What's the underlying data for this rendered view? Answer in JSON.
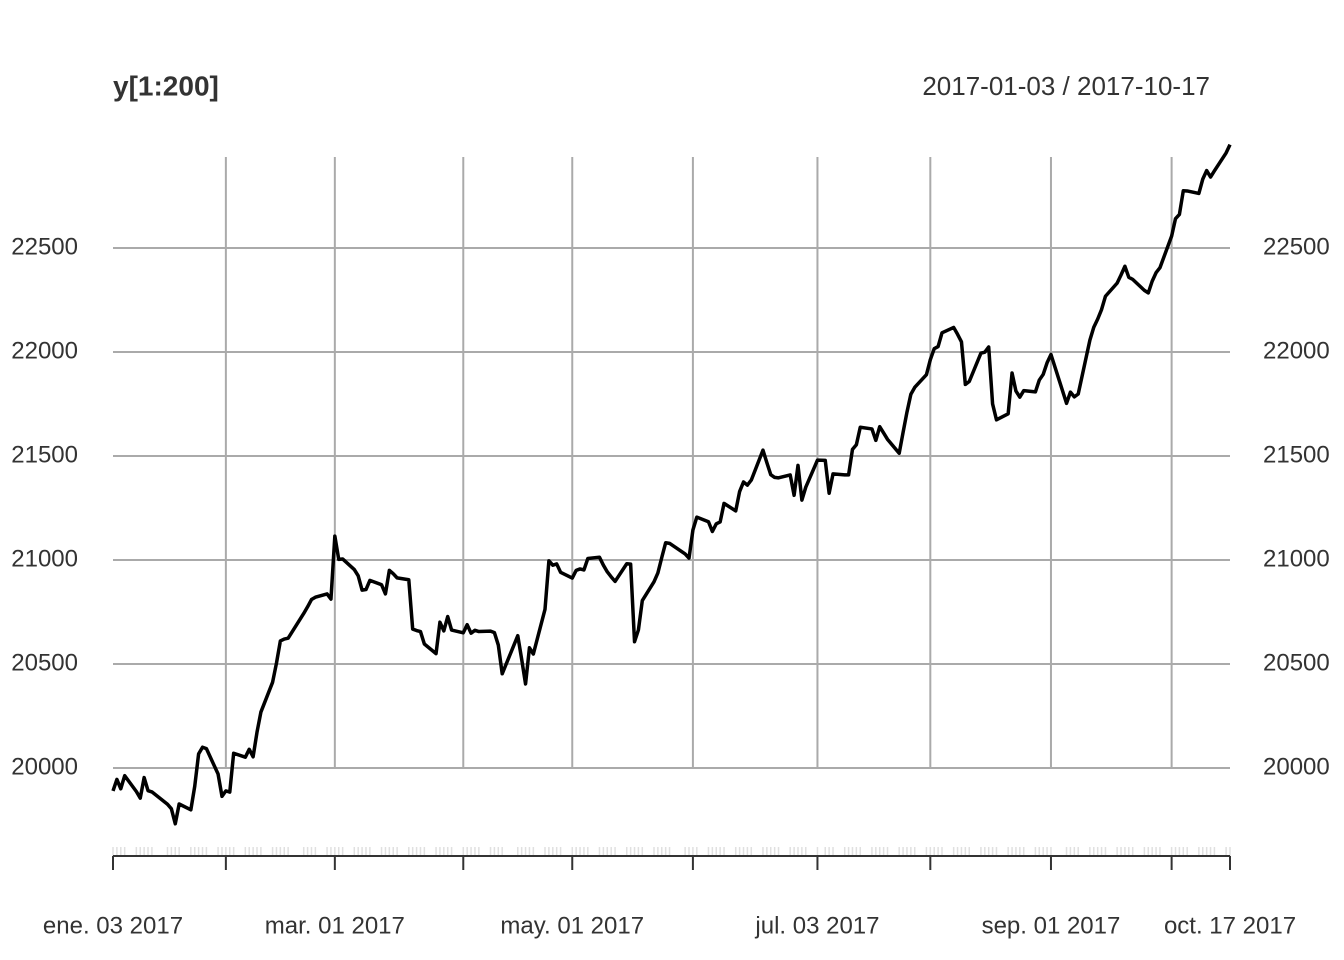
{
  "chart_data": {
    "type": "line",
    "title": "y[1:200]",
    "subtitle": "2017-01-03 / 2017-10-17",
    "color": "#000000",
    "grid": true,
    "xlim": [
      "2017-01-03",
      "2017-10-17"
    ],
    "xticks": [
      {
        "value": "2017-01-03",
        "label": "ene. 03 2017"
      },
      {
        "value": "2017-02-01",
        "label": null
      },
      {
        "value": "2017-03-01",
        "label": "mar. 01 2017"
      },
      {
        "value": "2017-04-03",
        "label": null
      },
      {
        "value": "2017-05-01",
        "label": "may. 01 2017"
      },
      {
        "value": "2017-06-01",
        "label": null
      },
      {
        "value": "2017-07-03",
        "label": "jul. 03 2017"
      },
      {
        "value": "2017-08-01",
        "label": null
      },
      {
        "value": "2017-09-01",
        "label": "sep. 01 2017"
      },
      {
        "value": "2017-10-02",
        "label": null
      },
      {
        "value": "2017-10-17",
        "label": "oct. 17 2017"
      }
    ],
    "ylim": [
      19577,
      22995
    ],
    "yticks": [
      20000,
      20500,
      21000,
      21500,
      22000,
      22500
    ],
    "x": [
      "2017-01-03",
      "2017-01-04",
      "2017-01-05",
      "2017-01-06",
      "2017-01-09",
      "2017-01-10",
      "2017-01-11",
      "2017-01-12",
      "2017-01-13",
      "2017-01-17",
      "2017-01-18",
      "2017-01-19",
      "2017-01-20",
      "2017-01-23",
      "2017-01-24",
      "2017-01-25",
      "2017-01-26",
      "2017-01-27",
      "2017-01-30",
      "2017-01-31",
      "2017-02-01",
      "2017-02-02",
      "2017-02-03",
      "2017-02-06",
      "2017-02-07",
      "2017-02-08",
      "2017-02-09",
      "2017-02-10",
      "2017-02-13",
      "2017-02-14",
      "2017-02-15",
      "2017-02-16",
      "2017-02-17",
      "2017-02-21",
      "2017-02-22",
      "2017-02-23",
      "2017-02-24",
      "2017-02-27",
      "2017-02-28",
      "2017-03-01",
      "2017-03-02",
      "2017-03-03",
      "2017-03-06",
      "2017-03-07",
      "2017-03-08",
      "2017-03-09",
      "2017-03-10",
      "2017-03-13",
      "2017-03-14",
      "2017-03-15",
      "2017-03-16",
      "2017-03-17",
      "2017-03-20",
      "2017-03-21",
      "2017-03-22",
      "2017-03-23",
      "2017-03-24",
      "2017-03-27",
      "2017-03-28",
      "2017-03-29",
      "2017-03-30",
      "2017-03-31",
      "2017-04-03",
      "2017-04-04",
      "2017-04-05",
      "2017-04-06",
      "2017-04-07",
      "2017-04-10",
      "2017-04-11",
      "2017-04-12",
      "2017-04-13",
      "2017-04-17",
      "2017-04-18",
      "2017-04-19",
      "2017-04-20",
      "2017-04-21",
      "2017-04-24",
      "2017-04-25",
      "2017-04-26",
      "2017-04-27",
      "2017-04-28",
      "2017-05-01",
      "2017-05-02",
      "2017-05-03",
      "2017-05-04",
      "2017-05-05",
      "2017-05-08",
      "2017-05-09",
      "2017-05-10",
      "2017-05-11",
      "2017-05-12",
      "2017-05-15",
      "2017-05-16",
      "2017-05-17",
      "2017-05-18",
      "2017-05-19",
      "2017-05-22",
      "2017-05-23",
      "2017-05-24",
      "2017-05-25",
      "2017-05-26",
      "2017-05-30",
      "2017-05-31",
      "2017-06-01",
      "2017-06-02",
      "2017-06-05",
      "2017-06-06",
      "2017-06-07",
      "2017-06-08",
      "2017-06-09",
      "2017-06-12",
      "2017-06-13",
      "2017-06-14",
      "2017-06-15",
      "2017-06-16",
      "2017-06-19",
      "2017-06-20",
      "2017-06-21",
      "2017-06-22",
      "2017-06-23",
      "2017-06-26",
      "2017-06-27",
      "2017-06-28",
      "2017-06-29",
      "2017-06-30",
      "2017-07-03",
      "2017-07-05",
      "2017-07-06",
      "2017-07-07",
      "2017-07-10",
      "2017-07-11",
      "2017-07-12",
      "2017-07-13",
      "2017-07-14",
      "2017-07-17",
      "2017-07-18",
      "2017-07-19",
      "2017-07-20",
      "2017-07-21",
      "2017-07-24",
      "2017-07-25",
      "2017-07-26",
      "2017-07-27",
      "2017-07-28",
      "2017-07-31",
      "2017-08-01",
      "2017-08-02",
      "2017-08-03",
      "2017-08-04",
      "2017-08-07",
      "2017-08-08",
      "2017-08-09",
      "2017-08-10",
      "2017-08-11",
      "2017-08-14",
      "2017-08-15",
      "2017-08-16",
      "2017-08-17",
      "2017-08-18",
      "2017-08-21",
      "2017-08-22",
      "2017-08-23",
      "2017-08-24",
      "2017-08-25",
      "2017-08-28",
      "2017-08-29",
      "2017-08-30",
      "2017-08-31",
      "2017-09-01",
      "2017-09-05",
      "2017-09-06",
      "2017-09-07",
      "2017-09-08",
      "2017-09-11",
      "2017-09-12",
      "2017-09-13",
      "2017-09-14",
      "2017-09-15",
      "2017-09-18",
      "2017-09-19",
      "2017-09-20",
      "2017-09-21",
      "2017-09-22",
      "2017-09-25",
      "2017-09-26",
      "2017-09-27",
      "2017-09-28",
      "2017-09-29",
      "2017-10-02",
      "2017-10-03",
      "2017-10-04",
      "2017-10-05",
      "2017-10-06",
      "2017-10-09",
      "2017-10-10",
      "2017-10-11",
      "2017-10-12",
      "2017-10-13",
      "2017-10-16",
      "2017-10-17"
    ],
    "values": [
      19890,
      19945,
      19900,
      19963,
      19887,
      19855,
      19954,
      19891,
      19885,
      19826,
      19804,
      19732,
      19827,
      19799,
      19912,
      20068,
      20100,
      20093,
      19971,
      19864,
      19890,
      19884,
      20071,
      20052,
      20090,
      20054,
      20172,
      20269,
      20412,
      20504,
      20611,
      20620,
      20624,
      20743,
      20775,
      20810,
      20821,
      20837,
      20812,
      21115,
      21003,
      21005,
      20954,
      20924,
      20855,
      20858,
      20902,
      20881,
      20837,
      20950,
      20934,
      20914,
      20905,
      20668,
      20661,
      20656,
      20596,
      20550,
      20701,
      20659,
      20728,
      20663,
      20650,
      20689,
      20648,
      20662,
      20656,
      20658,
      20651,
      20591,
      20453,
      20636,
      20523,
      20404,
      20578,
      20548,
      20763,
      20996,
      20975,
      20981,
      20941,
      20913,
      20950,
      20957,
      20952,
      21007,
      21013,
      20975,
      20943,
      20919,
      20897,
      20982,
      20980,
      20607,
      20664,
      20805,
      20895,
      20938,
      21012,
      21083,
      21080,
      21029,
      21009,
      21144,
      21206,
      21184,
      21137,
      21174,
      21183,
      21272,
      21236,
      21329,
      21375,
      21360,
      21384,
      21528,
      21468,
      21410,
      21397,
      21395,
      21409,
      21311,
      21455,
      21288,
      21350,
      21480,
      21479,
      21321,
      21414,
      21409,
      21409,
      21532,
      21554,
      21638,
      21630,
      21575,
      21641,
      21611,
      21580,
      21513,
      21613,
      21711,
      21797,
      21830,
      21891,
      21963,
      22016,
      22026,
      22092,
      22118,
      22085,
      22049,
      21844,
      21858,
      21994,
      21999,
      22024,
      21750,
      21674,
      21703,
      21899,
      21812,
      21783,
      21814,
      21808,
      21865,
      21892,
      21948,
      21988,
      21753,
      21807,
      21784,
      21798,
      22057,
      22119,
      22158,
      22204,
      22268,
      22331,
      22370,
      22412,
      22359,
      22349,
      22296,
      22284,
      22340,
      22381,
      22405,
      22557,
      22641,
      22661,
      22775,
      22774,
      22762,
      22831,
      22872,
      22841,
      22871,
      22957,
      22997
    ]
  }
}
